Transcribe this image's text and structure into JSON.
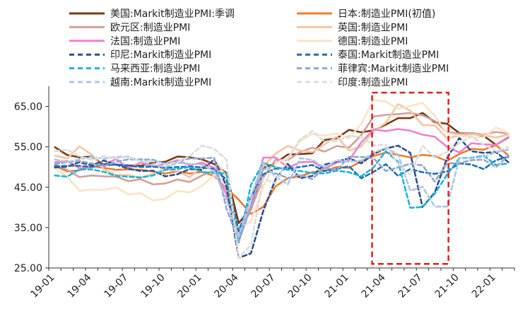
{
  "chart_data": {
    "type": "line",
    "title": "",
    "xlabel": "",
    "ylabel": "",
    "ylim": [
      25,
      70
    ],
    "yticks": [
      "25.00",
      "35.00",
      "45.00",
      "55.00",
      "65.00"
    ],
    "ytick_values": [
      25,
      35,
      45,
      55,
      65
    ],
    "xticks": [
      "19-01",
      "19-04",
      "19-07",
      "19-10",
      "20-01",
      "20-04",
      "20-07",
      "20-10",
      "21-01",
      "21-04",
      "21-07",
      "21-10",
      "22-01"
    ],
    "x_months": [
      "19-01",
      "19-02",
      "19-03",
      "19-04",
      "19-05",
      "19-06",
      "19-07",
      "19-08",
      "19-09",
      "19-10",
      "19-11",
      "19-12",
      "20-01",
      "20-02",
      "20-03",
      "20-04",
      "20-05",
      "20-06",
      "20-07",
      "20-08",
      "20-09",
      "20-10",
      "20-11",
      "20-12",
      "21-01",
      "21-02",
      "21-03",
      "21-04",
      "21-05",
      "21-06",
      "21-07",
      "21-08",
      "21-09",
      "21-10",
      "21-11",
      "21-12",
      "22-01",
      "22-02"
    ],
    "grid": false,
    "legend_position": "top",
    "highlight": {
      "x_start": "21-03",
      "x_end": "21-09",
      "y_start": 26,
      "y_end": 70,
      "color": "#e02020"
    },
    "series": [
      {
        "name": "美国:Markit制造业PMI:季调",
        "color": "#7a3b12",
        "dash": "solid",
        "values": [
          54.9,
          53.0,
          52.4,
          52.6,
          50.5,
          50.6,
          50.4,
          50.3,
          51.1,
          51.3,
          52.6,
          52.4,
          51.9,
          50.7,
          48.5,
          36.1,
          39.8,
          49.8,
          50.9,
          53.1,
          53.2,
          53.4,
          56.7,
          57.1,
          59.2,
          58.6,
          59.1,
          60.5,
          62.1,
          62.1,
          63.4,
          61.1,
          60.7,
          58.4,
          58.3,
          57.7,
          55.5,
          57.3
        ]
      },
      {
        "name": "日本:制造业PMI(初值)",
        "color": "#ed7d31",
        "dash": "solid",
        "values": [
          50.3,
          48.9,
          49.2,
          50.2,
          49.8,
          49.3,
          49.4,
          49.3,
          48.9,
          48.4,
          48.9,
          48.4,
          48.8,
          47.8,
          44.8,
          41.9,
          38.4,
          40.1,
          45.2,
          47.2,
          47.7,
          48.7,
          49.0,
          50.0,
          49.8,
          51.4,
          52.7,
          53.6,
          53.0,
          52.4,
          53.0,
          52.7,
          51.5,
          53.2,
          54.5,
          54.3,
          55.4,
          52.9
        ]
      },
      {
        "name": "欧元区:制造业PMI",
        "color": "#d4a09a",
        "dash": "solid",
        "values": [
          50.5,
          49.3,
          47.5,
          47.9,
          47.7,
          47.6,
          46.5,
          47.0,
          45.7,
          45.9,
          46.9,
          46.3,
          47.9,
          49.2,
          44.5,
          33.4,
          39.4,
          47.4,
          51.8,
          51.7,
          53.7,
          54.8,
          53.8,
          55.2,
          54.8,
          57.9,
          62.5,
          62.9,
          63.1,
          63.4,
          62.8,
          61.4,
          58.6,
          58.3,
          58.4,
          58.0,
          58.7,
          58.2
        ]
      },
      {
        "name": "英国:制造业PMI",
        "color": "#f5c6a0",
        "dash": "solid",
        "values": [
          52.8,
          52.1,
          55.1,
          53.1,
          49.4,
          48.0,
          48.0,
          47.4,
          48.3,
          49.6,
          48.9,
          47.5,
          50.0,
          51.7,
          47.8,
          32.6,
          40.7,
          50.1,
          53.3,
          55.2,
          54.1,
          53.7,
          55.6,
          57.5,
          54.1,
          55.1,
          58.9,
          60.9,
          65.6,
          63.9,
          60.4,
          60.3,
          57.1,
          57.8,
          58.1,
          57.9,
          57.3,
          58.0
        ]
      },
      {
        "name": "法国:制造业PMI",
        "color": "#ee82cf",
        "dash": "solid",
        "values": [
          51.2,
          51.5,
          49.7,
          50.0,
          50.6,
          52.0,
          49.7,
          51.1,
          50.1,
          50.7,
          51.7,
          50.4,
          51.1,
          49.8,
          43.2,
          31.5,
          40.6,
          52.3,
          52.4,
          49.8,
          51.2,
          51.3,
          49.6,
          51.1,
          51.6,
          56.1,
          59.3,
          58.9,
          59.4,
          59.0,
          58.0,
          57.5,
          55.0,
          53.6,
          55.9,
          55.6,
          55.5,
          57.2
        ]
      },
      {
        "name": "德国:制造业PMI",
        "color": "#fae3c7",
        "dash": "solid",
        "values": [
          49.7,
          47.6,
          44.1,
          44.4,
          44.3,
          45.0,
          43.2,
          43.5,
          41.7,
          42.1,
          44.1,
          43.7,
          45.3,
          48.0,
          45.4,
          34.5,
          36.6,
          45.2,
          51.0,
          52.2,
          56.4,
          58.2,
          57.8,
          58.3,
          57.1,
          60.7,
          66.6,
          66.2,
          64.4,
          65.1,
          65.9,
          62.6,
          58.4,
          57.8,
          57.4,
          57.4,
          59.8,
          58.4
        ]
      },
      {
        "name": "印尼:Markit制造业PMI",
        "color": "#2f4f8f",
        "dash": "dashed",
        "values": [
          49.9,
          50.1,
          51.2,
          50.4,
          51.6,
          50.6,
          49.6,
          49.0,
          49.1,
          47.7,
          48.2,
          49.5,
          49.3,
          51.9,
          45.3,
          27.5,
          28.6,
          39.1,
          46.9,
          50.8,
          47.2,
          47.8,
          50.6,
          51.3,
          52.2,
          50.9,
          53.2,
          54.6,
          55.3,
          53.5,
          40.1,
          43.7,
          52.2,
          57.2,
          53.9,
          53.5,
          53.7,
          51.2
        ]
      },
      {
        "name": "泰国:Markit制造业PMI",
        "color": "#1f6fb4",
        "dash": "dashed",
        "values": [
          50.2,
          50.3,
          50.3,
          50.0,
          50.7,
          50.6,
          50.3,
          50.0,
          50.1,
          49.8,
          50.0,
          50.1,
          49.9,
          49.5,
          46.9,
          34.1,
          42.7,
          48.2,
          49.6,
          49.6,
          50.0,
          50.5,
          49.0,
          49.5,
          50.2,
          47.2,
          48.8,
          50.7,
          47.8,
          49.5,
          48.7,
          48.3,
          48.9,
          50.9,
          50.6,
          49.5,
          51.7,
          52.5
        ]
      },
      {
        "name": "马来西亚:制造业PMI",
        "color": "#1fb4d6",
        "dash": "dashed",
        "values": [
          47.9,
          47.6,
          49.4,
          49.4,
          48.8,
          47.8,
          47.6,
          47.4,
          47.9,
          49.3,
          49.5,
          50.0,
          48.8,
          48.5,
          48.4,
          31.3,
          45.6,
          51.0,
          50.0,
          49.3,
          49.0,
          48.5,
          48.4,
          49.1,
          48.7,
          47.7,
          49.9,
          53.9,
          51.3,
          39.9,
          40.1,
          43.4,
          48.1,
          52.2,
          52.3,
          52.8,
          50.5,
          50.9
        ]
      },
      {
        "name": "菲律宾:Markit制造业PMI",
        "color": "#8fa8d0",
        "dash": "dashed",
        "values": [
          50.7,
          51.2,
          51.5,
          50.9,
          50.2,
          51.3,
          51.9,
          51.9,
          51.8,
          50.8,
          51.4,
          52.1,
          52.1,
          52.3,
          39.7,
          31.6,
          40.1,
          49.7,
          48.4,
          47.3,
          48.1,
          47.0,
          49.9,
          49.2,
          52.5,
          52.5,
          52.2,
          49.0,
          49.9,
          50.8,
          50.4,
          46.4,
          50.9,
          51.0,
          51.7,
          51.8,
          50.0,
          52.8
        ]
      },
      {
        "name": "越南:Markit制造业PMI",
        "color": "#a9c7e6",
        "dash": "dashed",
        "values": [
          51.9,
          51.2,
          51.9,
          52.5,
          52.0,
          52.5,
          52.6,
          51.4,
          50.5,
          50.0,
          51.0,
          50.8,
          50.6,
          49.0,
          41.9,
          32.7,
          42.7,
          51.1,
          47.6,
          45.7,
          52.2,
          51.8,
          49.9,
          51.7,
          51.3,
          51.6,
          53.6,
          54.7,
          53.1,
          44.1,
          45.1,
          40.2,
          40.2,
          52.1,
          52.2,
          52.5,
          53.7,
          54.3
        ]
      },
      {
        "name": "印度:制造业PMI",
        "color": "#dcdcdc",
        "dash": "dashed",
        "values": [
          53.9,
          54.3,
          52.6,
          51.8,
          52.7,
          52.1,
          52.5,
          51.4,
          51.4,
          50.6,
          51.2,
          52.7,
          55.3,
          54.5,
          51.8,
          27.4,
          30.8,
          47.2,
          46.0,
          52.0,
          56.8,
          58.9,
          56.3,
          56.4,
          57.7,
          57.5,
          55.4,
          55.5,
          50.8,
          48.1,
          55.3,
          52.3,
          53.7,
          55.9,
          57.6,
          55.5,
          54.0,
          54.9
        ]
      }
    ]
  }
}
